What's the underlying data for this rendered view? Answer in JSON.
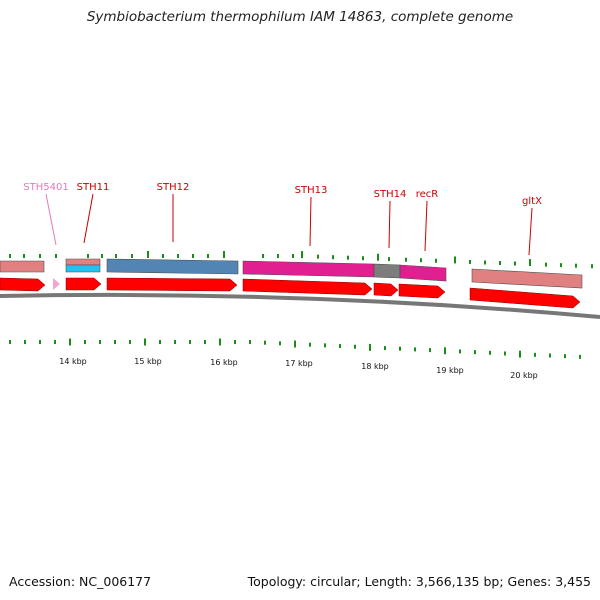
{
  "title": "Symbiobacterium thermophilum IAM 14863, complete genome",
  "footer": {
    "accession_prefix": "Accession:",
    "accession": "NC_006177",
    "topology_text": "Topology: circular; Length: 3,566,135 bp; Genes: 3,455"
  },
  "colors": {
    "feature_red": "#ff0000",
    "pseudo_pink": "#f0a6cf",
    "label_red": "#cc0000",
    "label_pink": "#e87ab8",
    "tick_green": "#1a8c1a",
    "backbone_gray": "#777777",
    "steel_blue": "#4a7fb0",
    "magenta": "#e0148c",
    "salmon": "#e07a7a",
    "cyan": "#19bdf0",
    "gray_block": "#777777"
  },
  "genes": [
    {
      "name": "STH5401",
      "color": "pink"
    },
    {
      "name": "STH11",
      "color": "red"
    },
    {
      "name": "STH12",
      "color": "red"
    },
    {
      "name": "STH13",
      "color": "red"
    },
    {
      "name": "STH14",
      "color": "red"
    },
    {
      "name": "recR",
      "color": "red"
    },
    {
      "name": "gltX",
      "color": "red"
    }
  ],
  "scale_labels": [
    "14 kbp",
    "15 kbp",
    "16 kbp",
    "17 kbp",
    "18 kbp",
    "19 kbp",
    "20 kbp"
  ]
}
